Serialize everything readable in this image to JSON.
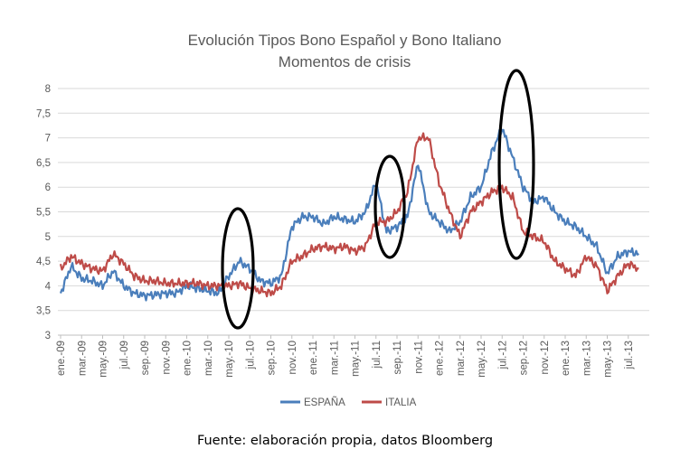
{
  "source": "Fuente: elaboración propia, datos Bloomberg",
  "chart_data": {
    "type": "line",
    "title": "Evolución Tipos Bono Español y Bono Italiano",
    "subtitle": "Momentos de crisis",
    "xlabel": "",
    "ylabel": "",
    "ylim": [
      3,
      8
    ],
    "y_ticks": [
      "3",
      "3,5",
      "4",
      "4,5",
      "5",
      "5,5",
      "6",
      "6,5",
      "7",
      "7,5",
      "8"
    ],
    "x_ticks": [
      "ene.-09",
      "mar.-09",
      "may.-09",
      "jul.-09",
      "sep.-09",
      "nov.-09",
      "ene.-10",
      "mar.-10",
      "may.-10",
      "jul.-10",
      "sep.-10",
      "nov.-10",
      "ene.-11",
      "mar.-11",
      "may.-11",
      "jul.-11",
      "sep.-11",
      "nov.-11",
      "ene.-12",
      "mar.-12",
      "may.-12",
      "jul.-12",
      "sep.-12",
      "nov.-12",
      "ene.-13",
      "mar.-13",
      "may.-13",
      "jul.-13"
    ],
    "grid": true,
    "legend": "bottom",
    "series": [
      {
        "name": "ESPAÑA",
        "color": "#4a7ebb",
        "x": [
          "ene.-09",
          "feb.-09",
          "mar.-09",
          "abr.-09",
          "may.-09",
          "jun.-09",
          "jul.-09",
          "ago.-09",
          "sep.-09",
          "oct.-09",
          "nov.-09",
          "dic.-09",
          "ene.-10",
          "feb.-10",
          "mar.-10",
          "abr.-10",
          "may.-10",
          "jun.-10",
          "jul.-10",
          "ago.-10",
          "sep.-10",
          "oct.-10",
          "nov.-10",
          "dic.-10",
          "ene.-11",
          "feb.-11",
          "mar.-11",
          "abr.-11",
          "may.-11",
          "jun.-11",
          "jul.-11",
          "ago.-11",
          "sep.-11",
          "oct.-11",
          "nov.-11",
          "dic.-11",
          "ene.-12",
          "feb.-12",
          "mar.-12",
          "abr.-12",
          "may.-12",
          "jun.-12",
          "jul.-12",
          "ago.-12",
          "sep.-12",
          "oct.-12",
          "nov.-12",
          "dic.-12",
          "ene.-13",
          "feb.-13",
          "mar.-13",
          "abr.-13",
          "may.-13",
          "jun.-13",
          "jul.-13",
          "ago.-13"
        ],
        "values": [
          3.85,
          4.4,
          4.15,
          4.1,
          4.0,
          4.3,
          4.0,
          3.85,
          3.8,
          3.82,
          3.85,
          3.85,
          4.0,
          3.95,
          3.9,
          3.85,
          4.2,
          4.5,
          4.35,
          4.1,
          4.05,
          4.2,
          5.2,
          5.4,
          5.4,
          5.25,
          5.4,
          5.35,
          5.3,
          5.5,
          6.1,
          5.1,
          5.2,
          5.4,
          6.5,
          5.5,
          5.3,
          5.1,
          5.3,
          5.8,
          6.0,
          6.7,
          7.2,
          6.6,
          6.0,
          5.7,
          5.8,
          5.5,
          5.3,
          5.2,
          5.0,
          4.8,
          4.25,
          4.6,
          4.7,
          4.65
        ]
      },
      {
        "name": "ITALIA",
        "color": "#be4b48",
        "x": [
          "ene.-09",
          "feb.-09",
          "mar.-09",
          "abr.-09",
          "may.-09",
          "jun.-09",
          "jul.-09",
          "ago.-09",
          "sep.-09",
          "oct.-09",
          "nov.-09",
          "dic.-09",
          "ene.-10",
          "feb.-10",
          "mar.-10",
          "abr.-10",
          "may.-10",
          "jun.-10",
          "jul.-10",
          "ago.-10",
          "sep.-10",
          "oct.-10",
          "nov.-10",
          "dic.-10",
          "ene.-11",
          "feb.-11",
          "mar.-11",
          "abr.-11",
          "may.-11",
          "jun.-11",
          "jul.-11",
          "ago.-11",
          "sep.-11",
          "oct.-11",
          "nov.-11",
          "dic.-11",
          "ene.-12",
          "feb.-12",
          "mar.-12",
          "abr.-12",
          "may.-12",
          "jun.-12",
          "jul.-12",
          "ago.-12",
          "sep.-12",
          "oct.-12",
          "nov.-12",
          "dic.-12",
          "ene.-13",
          "feb.-13",
          "mar.-13",
          "abr.-13",
          "may.-13",
          "jun.-13",
          "jul.-13",
          "ago.-13"
        ],
        "values": [
          4.35,
          4.6,
          4.45,
          4.35,
          4.3,
          4.65,
          4.45,
          4.2,
          4.1,
          4.1,
          4.05,
          4.05,
          4.05,
          4.05,
          4.0,
          4.0,
          4.0,
          4.05,
          3.95,
          3.9,
          3.85,
          4.0,
          4.5,
          4.6,
          4.75,
          4.8,
          4.75,
          4.8,
          4.7,
          4.8,
          5.3,
          5.3,
          5.5,
          5.9,
          7.0,
          7.0,
          6.1,
          5.5,
          5.0,
          5.5,
          5.7,
          5.9,
          6.0,
          5.8,
          5.1,
          5.0,
          4.9,
          4.5,
          4.35,
          4.2,
          4.6,
          4.4,
          3.9,
          4.2,
          4.45,
          4.35
        ]
      }
    ],
    "annotations": [
      "ellipse may.-10",
      "ellipse jul.-11",
      "ellipse jul.-12"
    ]
  }
}
